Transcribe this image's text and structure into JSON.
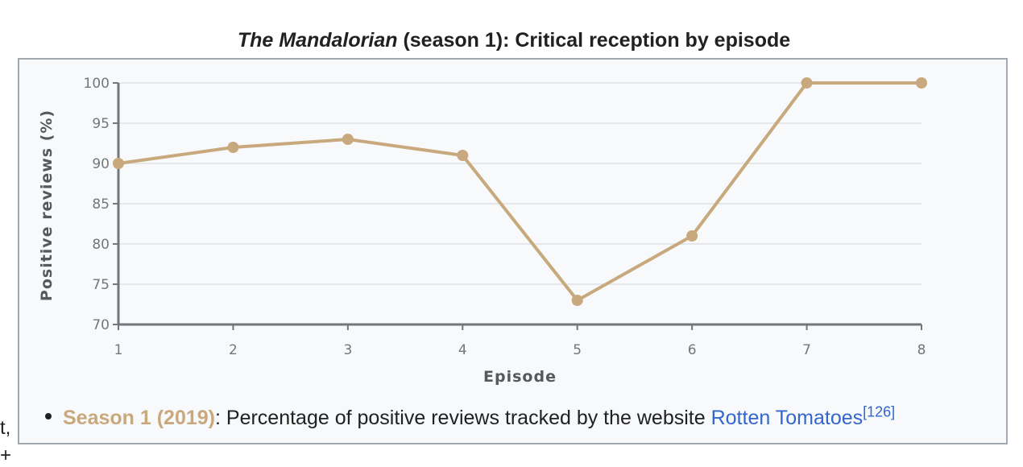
{
  "page": {
    "stray_left_text": "t,",
    "stray_left_text_2": "+"
  },
  "chart_data": {
    "type": "line",
    "title_italic": "The Mandalorian",
    "title_rest": " (season 1): Critical reception by episode",
    "xlabel": "Episode",
    "ylabel": "Positive reviews (%)",
    "x": [
      1,
      2,
      3,
      4,
      5,
      6,
      7,
      8
    ],
    "xlim": [
      1,
      8
    ],
    "ylim": [
      70,
      100
    ],
    "yticks": [
      70,
      75,
      80,
      85,
      90,
      95,
      100
    ],
    "grid": true,
    "series": [
      {
        "name": "Season 1 (2019)",
        "color": "#c8a97e",
        "values": [
          90,
          92,
          93,
          91,
          73,
          81,
          100,
          100
        ]
      }
    ],
    "legend": {
      "series_label": "Season 1 (2019)",
      "description": ": Percentage of positive reviews tracked by the website ",
      "link_text": "Rotten Tomatoes",
      "reference": "[126]"
    }
  }
}
